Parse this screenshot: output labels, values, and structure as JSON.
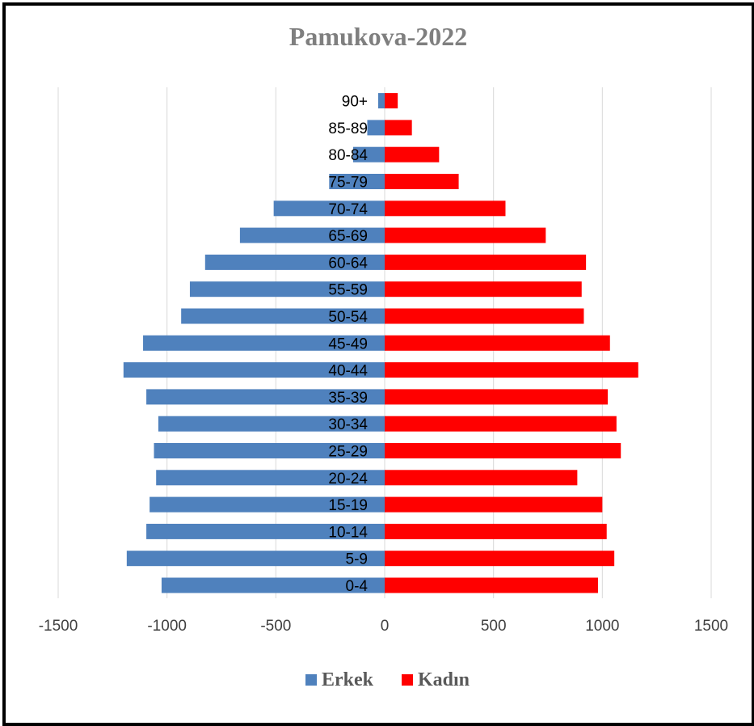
{
  "chart_data": {
    "type": "bar",
    "orientation": "horizontal",
    "title": "Pamukova-2022",
    "categories": [
      "0-4",
      "5-9",
      "10-14",
      "15-19",
      "20-24",
      "25-29",
      "30-34",
      "35-39",
      "40-44",
      "45-49",
      "50-54",
      "55-59",
      "60-64",
      "65-69",
      "70-74",
      "75-79",
      "80-84",
      "85-89",
      "90+"
    ],
    "series": [
      {
        "name": "Erkek",
        "color": "#4f81bd",
        "values": [
          -1025,
          -1185,
          -1095,
          -1080,
          -1050,
          -1060,
          -1040,
          -1095,
          -1200,
          -1110,
          -935,
          -895,
          -825,
          -665,
          -510,
          -255,
          -145,
          -80,
          -30
        ]
      },
      {
        "name": "Kadın",
        "color": "#ff0000",
        "values": [
          980,
          1055,
          1020,
          1000,
          885,
          1085,
          1065,
          1025,
          1165,
          1035,
          915,
          905,
          925,
          740,
          555,
          340,
          250,
          125,
          60
        ]
      }
    ],
    "xlim": [
      -1500,
      1500
    ],
    "xticks": [
      "-1500",
      "-1000",
      "-500",
      "0",
      "500",
      "1000",
      "1500"
    ],
    "xtick_values": [
      -1500,
      -1000,
      -500,
      0,
      500,
      1000,
      1500
    ],
    "grid": true,
    "legend_position": "bottom"
  }
}
